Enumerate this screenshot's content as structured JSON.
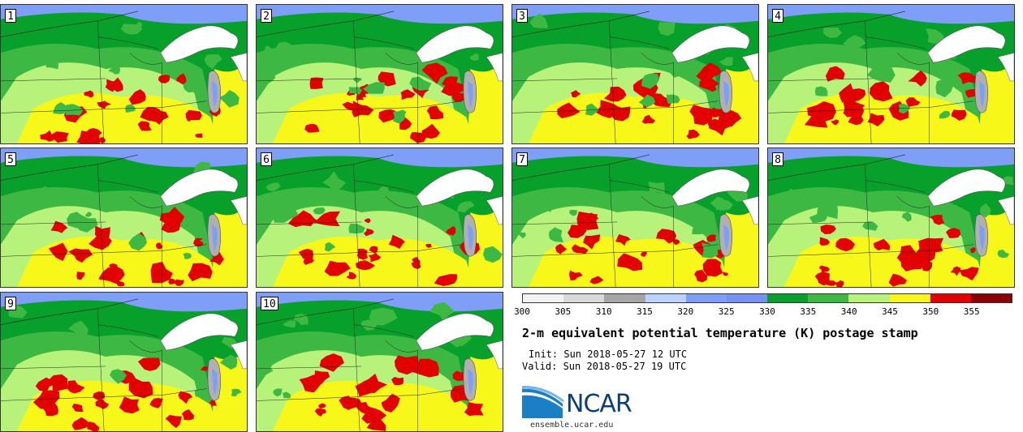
{
  "title": "2-m equivalent potential temperature (K) postage stamp",
  "init": "Init: Sun 2018-05-27 12 UTC",
  "valid": "Valid: Sun 2018-05-27 19 UTC",
  "logo_text": "NCAR",
  "website": "ensemble.ucar.edu",
  "panels": [
    {
      "label": "1"
    },
    {
      "label": "2"
    },
    {
      "label": "3"
    },
    {
      "label": "4"
    },
    {
      "label": "5"
    },
    {
      "label": "6"
    },
    {
      "label": "7"
    },
    {
      "label": "8"
    },
    {
      "label": "9"
    },
    {
      "label": "10"
    }
  ],
  "colorbar": {
    "colors": [
      "#f2f2f2",
      "#d9d9d9",
      "#a6a6a6",
      "#bcd2ff",
      "#7f9ef8",
      "#7891f5",
      "#07a02a",
      "#3db843",
      "#b7f37a",
      "#f7f719",
      "#e20000",
      "#8b0000"
    ],
    "ticks": [
      "300",
      "305",
      "310",
      "315",
      "320",
      "325",
      "330",
      "335",
      "340",
      "345",
      "350",
      "355"
    ]
  },
  "map_colors": {
    "cold": "#7f9ef8",
    "dark_green": "#07a02a",
    "green": "#3db843",
    "light_green": "#b7f37a",
    "yellow": "#f7f719",
    "red": "#e20000",
    "lake": "#ffffff",
    "lake_michigan": "#b0b0b0"
  }
}
